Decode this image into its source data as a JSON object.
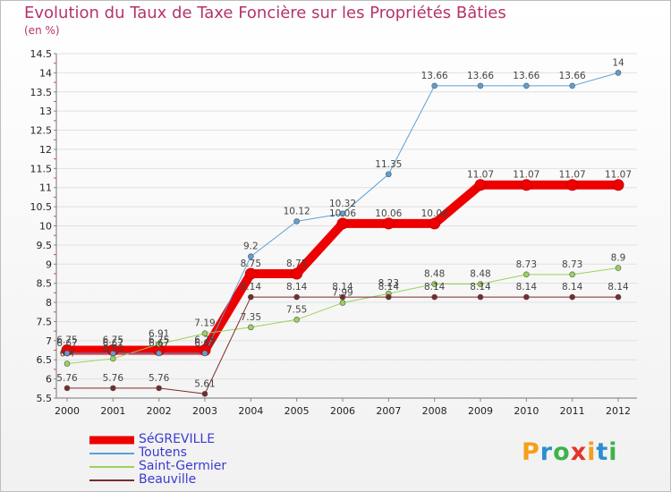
{
  "title": "Evolution du Taux de Taxe Foncière sur les Propriétés Bâties",
  "unit": "(en %)",
  "logo": {
    "letters": [
      "P",
      "r",
      "o",
      "x",
      "i",
      "t",
      "i"
    ],
    "colors": [
      "#f3a01a",
      "#2a8fd0",
      "#3db34b",
      "#e3332b",
      "#f3a01a",
      "#2a8fd0",
      "#3db34b"
    ]
  },
  "chart_data": {
    "type": "line",
    "categories": [
      "2000",
      "2001",
      "2002",
      "2003",
      "2004",
      "2005",
      "2006",
      "2007",
      "2008",
      "2009",
      "2010",
      "2011",
      "2012"
    ],
    "ylim": [
      5.5,
      14.5
    ],
    "yticks": [
      "5.5",
      "6",
      "6.5",
      "7",
      "7.5",
      "8",
      "8.5",
      "9",
      "9.5",
      "10",
      "10.5",
      "11",
      "11.5",
      "12",
      "12.5",
      "13",
      "13.5",
      "14",
      "14.5"
    ],
    "series": [
      {
        "name": "SéGREVILLE",
        "color": "#ee0000",
        "width": 10,
        "values": [
          6.75,
          6.75,
          6.75,
          6.75,
          8.75,
          8.75,
          10.06,
          10.06,
          10.06,
          11.07,
          11.07,
          11.07,
          11.07
        ],
        "labels": [
          "6.75",
          "6.75",
          "6.75",
          "6.75",
          "8.75",
          "8.75",
          "10.06",
          "10.06",
          "10.06",
          "11.07",
          "11.07",
          "11.07",
          "11.07"
        ]
      },
      {
        "name": "Toutens",
        "color": "#5ba0d6",
        "width": 1,
        "values": [
          6.67,
          6.67,
          6.67,
          6.67,
          9.2,
          10.12,
          10.32,
          11.35,
          13.66,
          13.66,
          13.66,
          13.66,
          14
        ],
        "labels": [
          "6.67",
          "6.67",
          "6.67",
          "6.67",
          "9.2",
          "10.12",
          "10.32",
          "11.35",
          "13.66",
          "13.66",
          "13.66",
          "13.66",
          "14"
        ]
      },
      {
        "name": "Saint-Germier",
        "color": "#9ad25a",
        "width": 1,
        "values": [
          6.4,
          6.53,
          6.91,
          7.19,
          7.35,
          7.55,
          7.99,
          8.23,
          8.48,
          8.48,
          8.73,
          8.73,
          8.9
        ],
        "labels": [
          "6.4",
          "6.53",
          "6.91",
          "7.19",
          "7.35",
          "7.55",
          "7.99",
          "8.23",
          "8.48",
          "8.48",
          "8.73",
          "8.73",
          "8.9"
        ]
      },
      {
        "name": "Beauville",
        "color": "#7a2a2a",
        "width": 1,
        "values": [
          5.76,
          5.76,
          5.76,
          5.61,
          8.14,
          8.14,
          8.14,
          8.14,
          8.14,
          8.14,
          8.14,
          8.14,
          8.14
        ],
        "labels": [
          "5.76",
          "5.76",
          "5.76",
          "5.61",
          "8.14",
          "8.14",
          "8.14",
          "8.14",
          "8.14",
          "8.14",
          "8.14",
          "8.14",
          "8.14"
        ]
      }
    ]
  }
}
